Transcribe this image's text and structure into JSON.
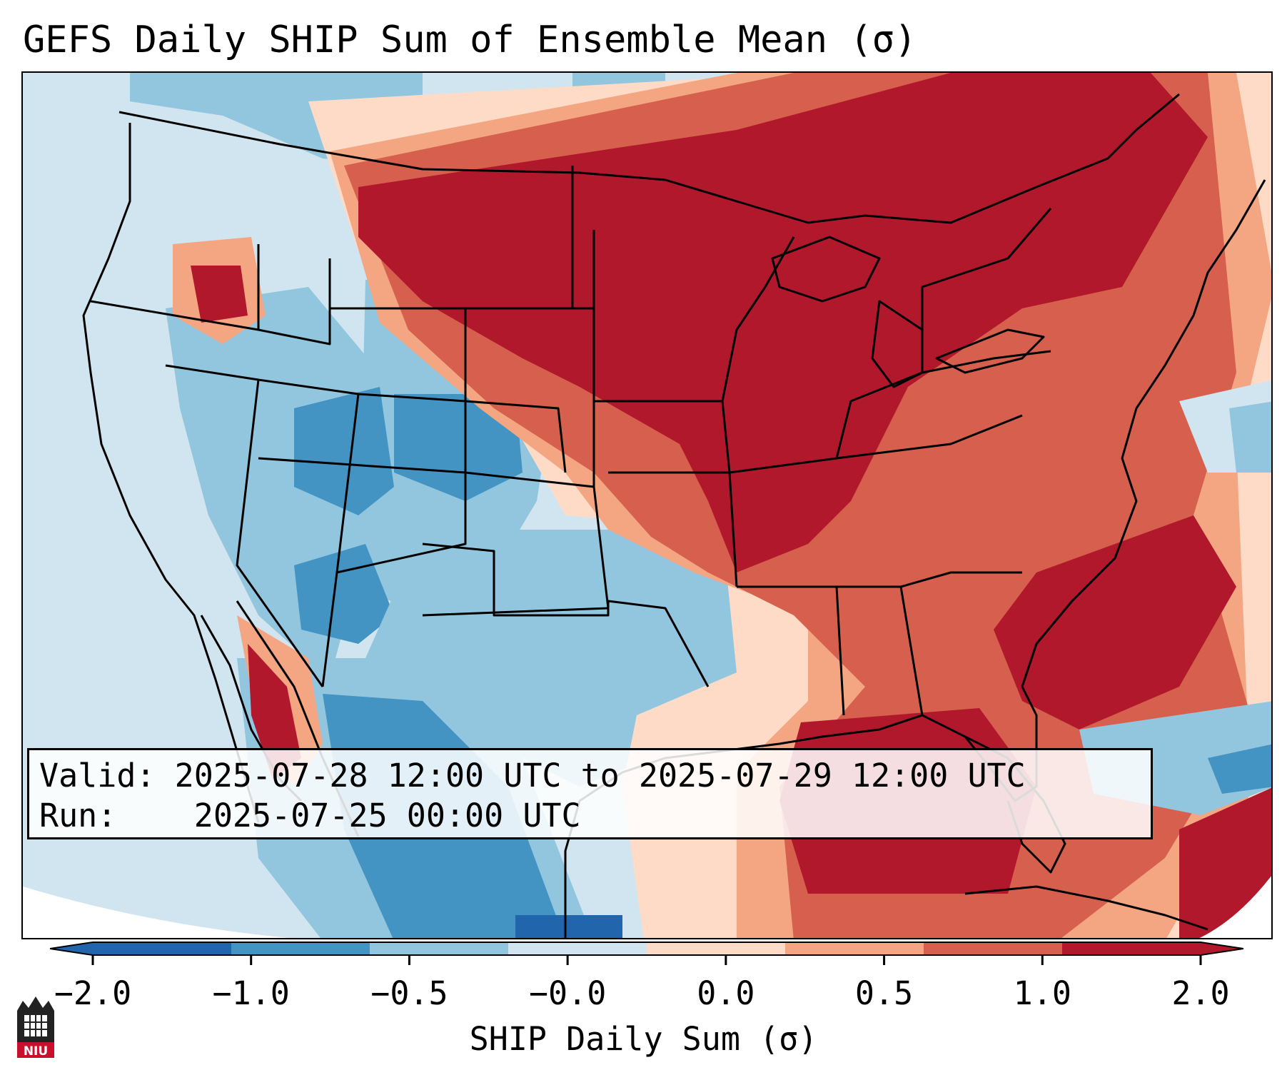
{
  "title": "GEFS Daily SHIP Sum of Ensemble Mean (σ)",
  "info": {
    "valid_label": "Valid:",
    "valid_value": "2025-07-28 12:00 UTC to 2025-07-29 12:00 UTC",
    "run_label": "Run:",
    "run_value": "2025-07-25 00:00 UTC"
  },
  "colorbar": {
    "label": "SHIP Daily Sum (σ)",
    "ticks": [
      "−2.0",
      "−1.0",
      "−0.5",
      "−0.0",
      "0.0",
      "0.5",
      "1.0",
      "2.0"
    ],
    "colors": [
      "#2166ac",
      "#4393c3",
      "#92c5de",
      "#d1e5f0",
      "#fddbc7",
      "#f4a582",
      "#d6604d",
      "#b2182b"
    ],
    "extend": "both"
  },
  "logo": {
    "text": "NIU",
    "icon": "niu-logo-icon"
  }
}
